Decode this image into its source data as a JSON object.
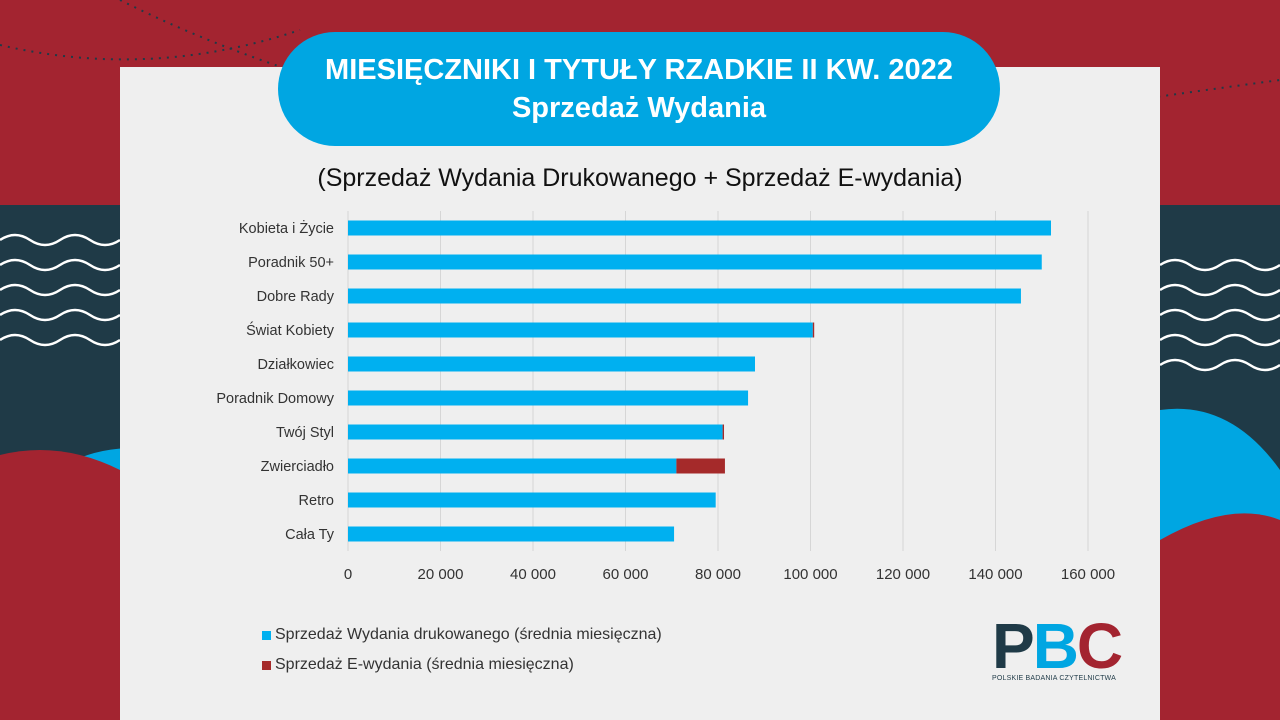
{
  "header": {
    "title_line1": "MIESIĘCZNIKI I TYTUŁY RZADKIE II KW. 2022",
    "title_line2": "Sprzedaż Wydania",
    "subtitle": "(Sprzedaż Wydania Drukowanego + Sprzedaż E-wydania)"
  },
  "colors": {
    "print": "#00b0f0",
    "ebook": "#a52a2a",
    "accent_red": "#a32430",
    "accent_blue": "#00a6e2",
    "dark": "#1f3a47"
  },
  "chart_data": {
    "type": "bar",
    "orientation": "horizontal",
    "stacked": true,
    "categories": [
      "Kobieta i Życie",
      "Poradnik 50+",
      "Dobre Rady",
      "Świat Kobiety",
      "Działkowiec",
      "Poradnik Domowy",
      "Twój Styl",
      "Zwierciadło",
      "Retro",
      "Cała Ty"
    ],
    "series": [
      {
        "name": "Sprzedaż Wydania drukowanego (średnia miesięczna)",
        "values": [
          152000,
          150000,
          145500,
          100500,
          88000,
          86500,
          81000,
          71000,
          79500,
          70500
        ]
      },
      {
        "name": "Sprzedaż E-wydania (średnia miesięczna)",
        "values": [
          0,
          0,
          0,
          300,
          0,
          0,
          300,
          10500,
          0,
          0
        ]
      }
    ],
    "xlim": [
      0,
      160000
    ],
    "xticks": [
      "0",
      "20 000",
      "40 000",
      "60 000",
      "80 000",
      "100 000",
      "120 000",
      "140 000",
      "160 000"
    ],
    "xtick_values": [
      0,
      20000,
      40000,
      60000,
      80000,
      100000,
      120000,
      140000,
      160000
    ],
    "grid": true,
    "legend_position": "bottom-left"
  },
  "logo": {
    "letters": [
      "P",
      "B",
      "C"
    ],
    "tagline": "POLSKIE BADANIA CZYTELNICTWA"
  }
}
